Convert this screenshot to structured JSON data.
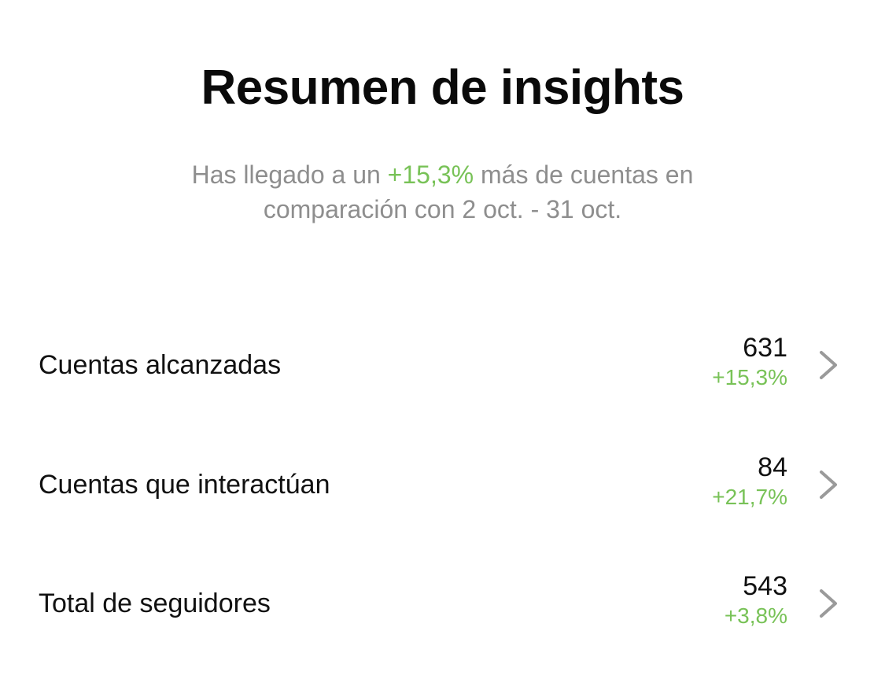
{
  "header": {
    "title": "Resumen de insights"
  },
  "summary": {
    "prefix": "Has llegado a un ",
    "highlight": "+15,3%",
    "suffix_line1": " más de cuentas en",
    "line2": "comparación con 2 oct. - 31 oct."
  },
  "metrics": [
    {
      "label": "Cuentas alcanzadas",
      "value": "631",
      "delta": "+15,3%",
      "icon": "chevron-right-icon"
    },
    {
      "label": "Cuentas que interactúan",
      "value": "84",
      "delta": "+21,7%",
      "icon": "chevron-right-icon"
    },
    {
      "label": "Total de seguidores",
      "value": "543",
      "delta": "+3,8%",
      "icon": "chevron-right-icon"
    }
  ],
  "colors": {
    "positive": "#78c257",
    "muted_text": "#8e8e8e",
    "chevron": "#9a9a9a"
  }
}
